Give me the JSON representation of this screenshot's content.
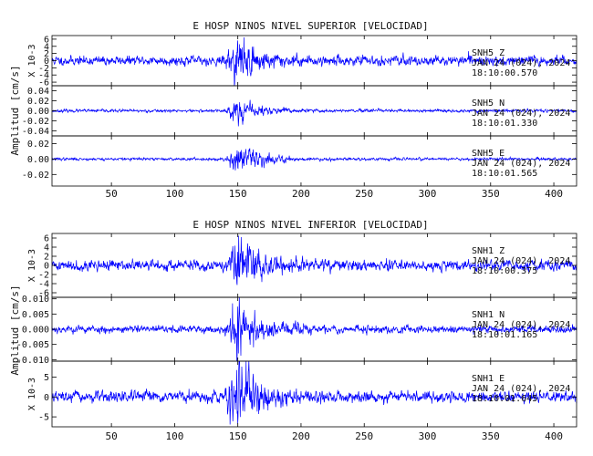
{
  "figure": {
    "ylabel_amplitude": "Amplitud [cm/s]",
    "scale_label": "X 10-3",
    "trace_color": "#0000ff",
    "axis_color": "#000000"
  },
  "chart_data": [
    {
      "type": "line",
      "title": "E HOSP NINOS NIVEL SUPERIOR [VELOCIDAD]",
      "xlim": [
        3,
        418
      ],
      "xticks": [
        "50",
        "100",
        "150",
        "200",
        "250",
        "300",
        "350",
        "400"
      ],
      "xtick_values": [
        50,
        100,
        150,
        200,
        250,
        300,
        350,
        400
      ],
      "grid": false,
      "panels": [
        {
          "name": "SNH5 Z",
          "station": "SNH5",
          "component": "Z",
          "date": "JAN 24 (024), 2024",
          "time": "18:10:00.570",
          "ylim": [
            -7,
            7
          ],
          "yticks": [
            "6",
            "4",
            "2",
            "0",
            "-2",
            "-4",
            "-6"
          ],
          "ytick_values": [
            6,
            4,
            2,
            0,
            -2,
            -4,
            -6
          ],
          "scale": "X 10-3",
          "noise_amp": 1.1,
          "peak_amp": 4.8,
          "event_center": 150,
          "seed": 11
        },
        {
          "name": "SNH5 N",
          "station": "SNH5",
          "component": "N",
          "date": "JAN 24 (024), 2024",
          "time": "18:10:01.330",
          "ylim": [
            -0.05,
            0.05
          ],
          "yticks": [
            "0.04",
            "0.02",
            "0.00",
            "-0.02",
            "-0.04"
          ],
          "ytick_values": [
            0.04,
            0.02,
            0.0,
            -0.02,
            -0.04
          ],
          "noise_amp": 0.0025,
          "peak_amp": 0.018,
          "event_center": 150,
          "seed": 23
        },
        {
          "name": "SNH5 E",
          "station": "SNH5",
          "component": "E",
          "date": "JAN 24 (024), 2024",
          "time": "18:10:01.565",
          "ylim": [
            -0.035,
            0.03
          ],
          "yticks": [
            "0.02",
            "0.00",
            "-0.02"
          ],
          "ytick_values": [
            0.02,
            0.0,
            -0.02
          ],
          "noise_amp": 0.0015,
          "peak_amp": 0.016,
          "event_center": 150,
          "seed": 37
        }
      ]
    },
    {
      "type": "line",
      "title": "E HOSP NINOS NIVEL INFERIOR [VELOCIDAD]",
      "xlim": [
        3,
        418
      ],
      "xticks": [
        "50",
        "100",
        "150",
        "200",
        "250",
        "300",
        "350",
        "400"
      ],
      "xtick_values": [
        50,
        100,
        150,
        200,
        250,
        300,
        350,
        400
      ],
      "grid": false,
      "panels": [
        {
          "name": "SNH1 Z",
          "station": "SNH1",
          "component": "Z",
          "date": "JAN 24 (024), 2024",
          "time": "18:10:00.375",
          "ylim": [
            -7,
            7
          ],
          "yticks": [
            "6",
            "4",
            "2",
            "0",
            "-2",
            "-4",
            "-6"
          ],
          "ytick_values": [
            6,
            4,
            2,
            0,
            -2,
            -4,
            -6
          ],
          "scale": "X 10-3",
          "noise_amp": 1.0,
          "peak_amp": 5.5,
          "event_center": 150,
          "seed": 41
        },
        {
          "name": "SNH1 N",
          "station": "SNH1",
          "component": "N",
          "date": "JAN 24 (024), 2024",
          "time": "18:10:01.165",
          "ylim": [
            -0.0105,
            0.0105
          ],
          "yticks": [
            "0.010",
            "0.005",
            "0.000",
            "-0.005",
            "-0.010"
          ],
          "ytick_values": [
            0.01,
            0.005,
            0.0,
            -0.005,
            -0.01
          ],
          "noise_amp": 0.0011,
          "peak_amp": 0.0075,
          "event_center": 150,
          "seed": 53
        },
        {
          "name": "SNH1 E",
          "station": "SNH1",
          "component": "E",
          "date": "JAN 24 (024), 2024",
          "time": "18:10:01.645",
          "ylim": [
            -7.5,
            9
          ],
          "yticks": [
            "5",
            "0",
            "-5"
          ],
          "ytick_values": [
            5,
            0,
            -5
          ],
          "scale": "X 10-3",
          "noise_amp": 1.2,
          "peak_amp": 6.5,
          "event_center": 150,
          "seed": 67
        }
      ]
    }
  ]
}
